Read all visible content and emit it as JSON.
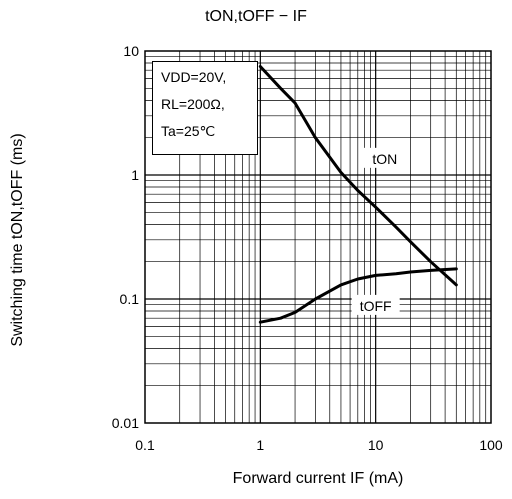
{
  "chart_data": {
    "type": "line",
    "title": "tON,tOFF − IF",
    "xlabel": "Forward current  IF  (mA)",
    "ylabel": "Switching time  tON,tOFF  (ms)",
    "xscale": "log",
    "yscale": "log",
    "xlim": [
      0.1,
      100
    ],
    "ylim": [
      0.01,
      10
    ],
    "x_ticks": [
      "0.1",
      "1",
      "10",
      "100"
    ],
    "y_ticks": [
      "0.01",
      "0.1",
      "1",
      "10"
    ],
    "grid": true,
    "annotation": [
      "VDD=20V,",
      "RL=200Ω,",
      "Ta=25℃"
    ],
    "series": [
      {
        "name": "tON",
        "x": [
          1,
          1.5,
          2,
          3,
          5,
          7,
          10,
          15,
          20,
          30,
          50
        ],
        "y": [
          7.5,
          5.0,
          3.8,
          2.0,
          1.05,
          0.75,
          0.55,
          0.38,
          0.29,
          0.2,
          0.13
        ]
      },
      {
        "name": "tOFF",
        "x": [
          1,
          1.5,
          2,
          3,
          5,
          7,
          10,
          15,
          20,
          30,
          50
        ],
        "y": [
          0.065,
          0.07,
          0.078,
          0.1,
          0.13,
          0.145,
          0.155,
          0.16,
          0.165,
          0.17,
          0.175
        ]
      }
    ]
  }
}
